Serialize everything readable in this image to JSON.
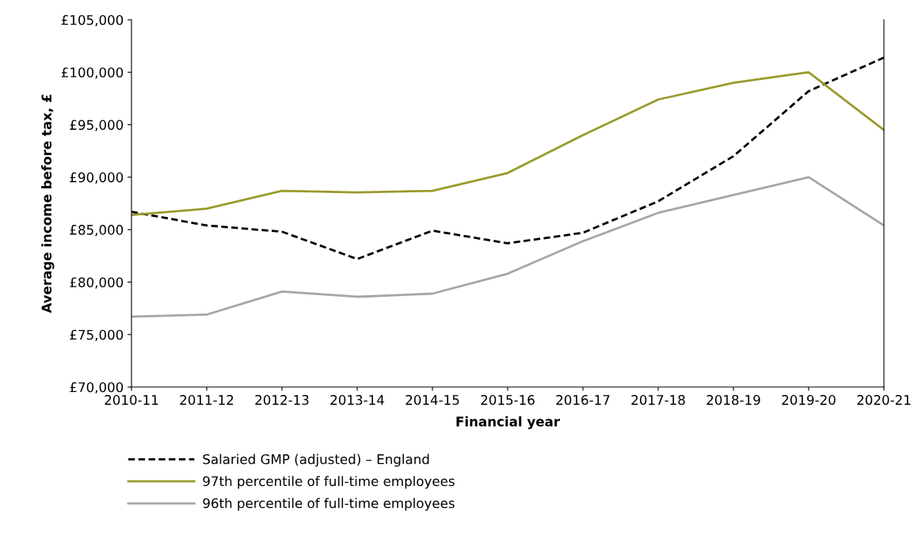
{
  "chart_data": {
    "type": "line",
    "xlabel": "Financial year",
    "ylabel": "Average income before tax, £",
    "categories": [
      "2010-11",
      "2011-12",
      "2012-13",
      "2013-14",
      "2014-15",
      "2015-16",
      "2016-17",
      "2017-18",
      "2018-19",
      "2019-20",
      "2020-21"
    ],
    "series": [
      {
        "name": "Salaried GMP (adjusted) – England",
        "color": "#000000",
        "line_style": "dashed",
        "values": [
          86700,
          85400,
          84800,
          82200,
          84900,
          83700,
          84700,
          87700,
          92000,
          98200,
          101400
        ]
      },
      {
        "name": "97th percentile of full-time employees",
        "color": "#9a9a2c",
        "line_style": "solid",
        "values": [
          86400,
          87000,
          88700,
          88550,
          88700,
          90400,
          94000,
          97400,
          99000,
          100000,
          94500
        ]
      },
      {
        "name": "96th percentile of full-time employees",
        "color": "#a6a6a6",
        "line_style": "solid",
        "values": [
          76700,
          76900,
          79100,
          78600,
          78900,
          80800,
          83900,
          86600,
          88300,
          90000,
          85400
        ]
      }
    ],
    "ylim": [
      70000,
      105000
    ],
    "yticks": [
      {
        "value": 70000,
        "label": "£70,000"
      },
      {
        "value": 75000,
        "label": "£75,000"
      },
      {
        "value": 80000,
        "label": "£80,000"
      },
      {
        "value": 85000,
        "label": "£85,000"
      },
      {
        "value": 90000,
        "label": "£90,000"
      },
      {
        "value": 95000,
        "label": "£95,000"
      },
      {
        "value": 100000,
        "label": "£100,000"
      },
      {
        "value": 105000,
        "label": "£105,000"
      }
    ],
    "grid": false,
    "legend": "bottom"
  }
}
